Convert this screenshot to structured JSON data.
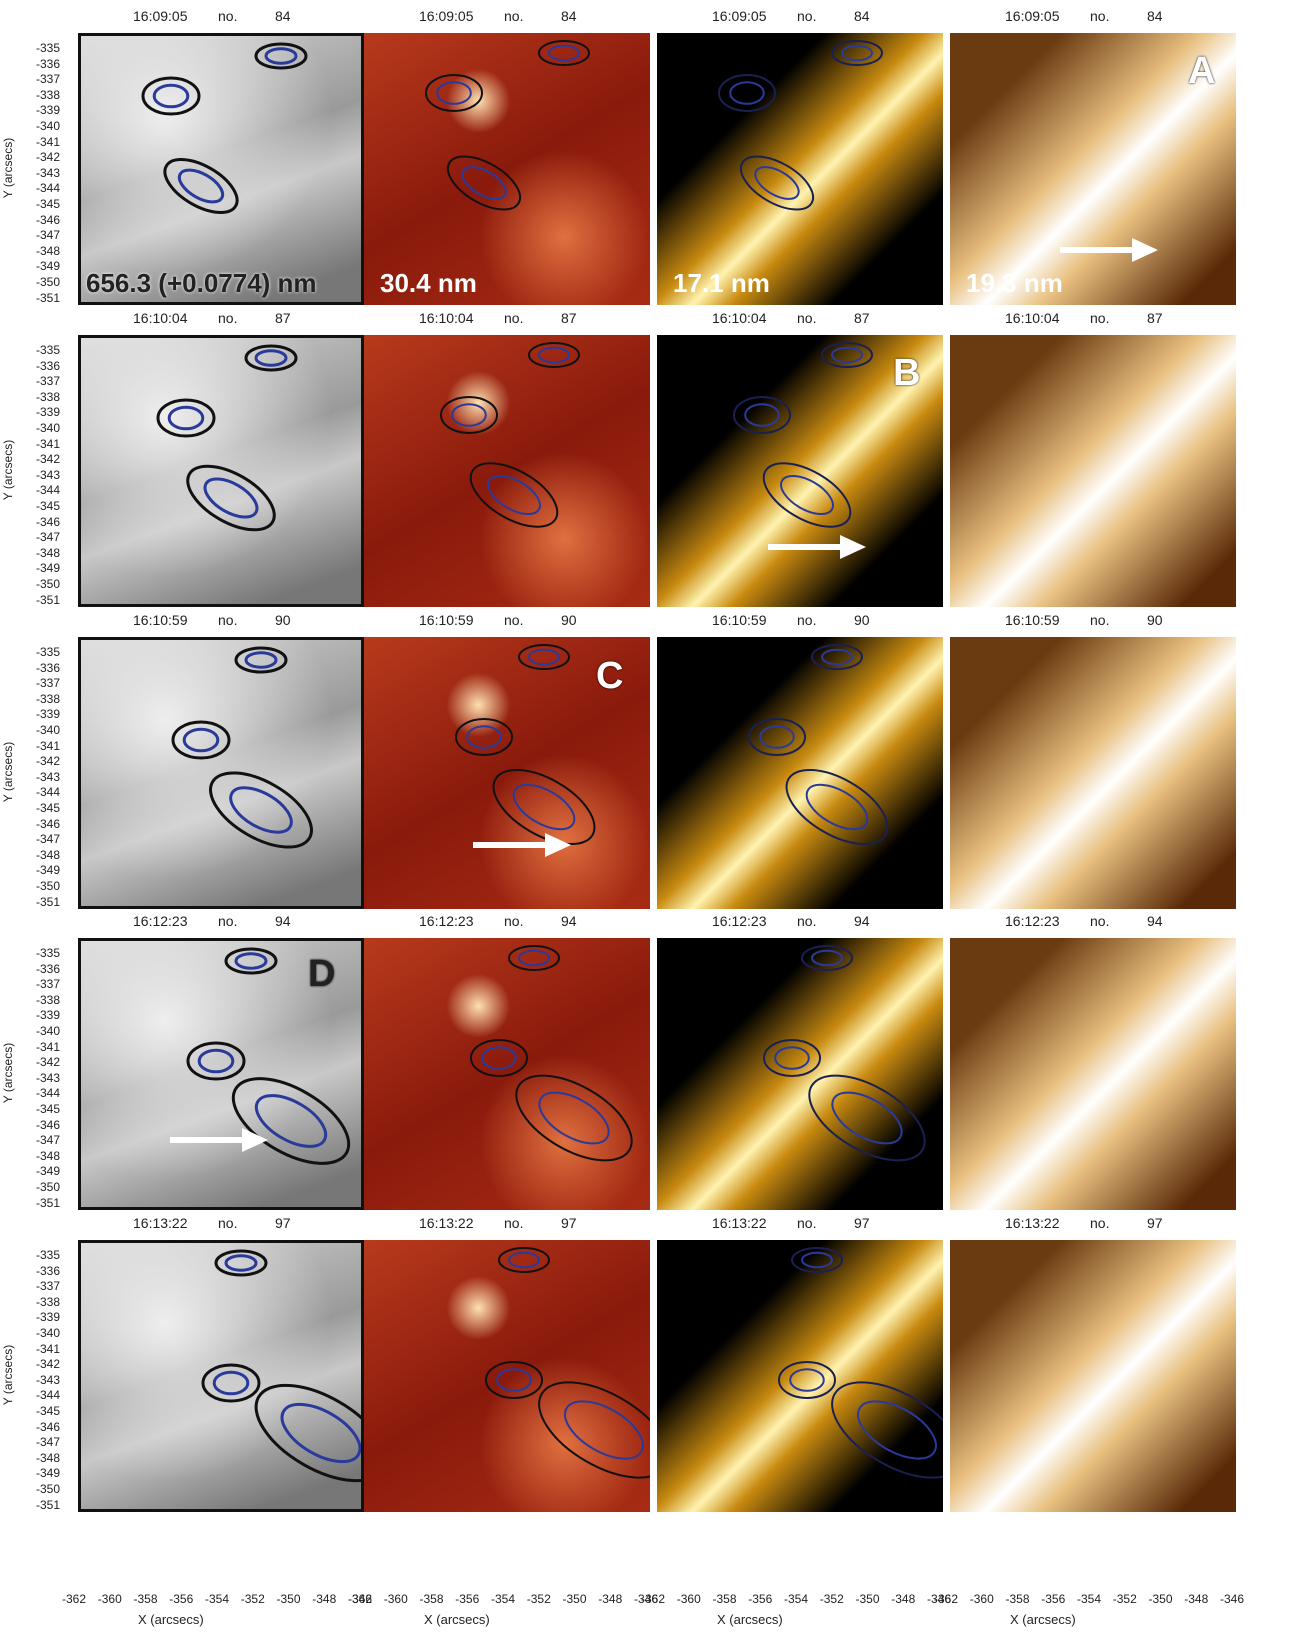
{
  "rows": [
    {
      "time": "16:09:05",
      "no": "no.",
      "frame": "84"
    },
    {
      "time": "16:10:04",
      "no": "no.",
      "frame": "87"
    },
    {
      "time": "16:10:59",
      "no": "no.",
      "frame": "90"
    },
    {
      "time": "16:12:23",
      "no": "no.",
      "frame": "94"
    },
    {
      "time": "16:13:22",
      "no": "no.",
      "frame": "97"
    }
  ],
  "wavelengths": [
    "656.3 (+0.0774) nm",
    "30.4 nm",
    "17.1 nm",
    "19.3 nm"
  ],
  "letters": [
    "A",
    "B",
    "C",
    "D"
  ],
  "y_axis": {
    "title": "Y (arcsecs)",
    "ticks": [
      "-335",
      "-336",
      "-337",
      "-338",
      "-339",
      "-340",
      "-341",
      "-342",
      "-343",
      "-344",
      "-345",
      "-346",
      "-347",
      "-348",
      "-349",
      "-350",
      "-351"
    ]
  },
  "x_axis": {
    "title": "X (arcsecs)",
    "ticks": [
      "-362",
      "-360",
      "-358",
      "-356",
      "-354",
      "-352",
      "-350",
      "-348",
      "-346"
    ]
  }
}
